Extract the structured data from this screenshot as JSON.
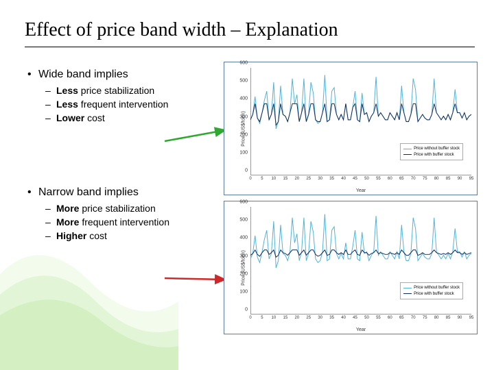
{
  "title": "Effect of price band width – Explanation",
  "blocks": [
    {
      "heading": "Wide band implies",
      "items": [
        {
          "bold": "Less",
          "rest": " price stabilization"
        },
        {
          "bold": "Less",
          "rest": " frequent intervention"
        },
        {
          "bold": "Lower",
          "rest": " cost"
        }
      ]
    },
    {
      "heading": "Narrow band implies",
      "items": [
        {
          "bold": "More",
          "rest": " price stabilization"
        },
        {
          "bold": "More",
          "rest": " frequent intervention"
        },
        {
          "bold": "Higher",
          "rest": " cost"
        }
      ]
    }
  ],
  "arrows": [
    {
      "color": "#2fa82f",
      "from": "wide-block",
      "to": "chart-0"
    },
    {
      "color": "#d02828",
      "from": "narrow-block",
      "to": "chart-1"
    }
  ],
  "charts": [
    {
      "type": "line",
      "ylabel": "Price (US$/tonn)",
      "xlabel": "Year",
      "ylim": [
        0,
        600
      ],
      "ytick_step": 100,
      "xlim": [
        0,
        95
      ],
      "xtick_step": 5,
      "background_color": "#ffffff",
      "axis_color": "#999999",
      "line_width": 1,
      "legend": [
        {
          "label": "Price without buffer stock",
          "color": "#4fb3d9"
        },
        {
          "label": "Price with buffer stock",
          "color": "#0e2a5c"
        }
      ],
      "series": [
        {
          "name": "without",
          "color": "#4fb3d9",
          "y": [
            310,
            340,
            440,
            320,
            290,
            350,
            420,
            470,
            310,
            340,
            520,
            260,
            300,
            500,
            340,
            330,
            300,
            350,
            540,
            400,
            450,
            300,
            350,
            540,
            300,
            340,
            520,
            460,
            310,
            290,
            300,
            350,
            560,
            300,
            310,
            470,
            490,
            340,
            310,
            340,
            310,
            400,
            310,
            310,
            380,
            470,
            310,
            300,
            460,
            340,
            350,
            300,
            330,
            350,
            550,
            330,
            350,
            330,
            310,
            310,
            350,
            330,
            310,
            350,
            310,
            500,
            350,
            300,
            300,
            340,
            540,
            480,
            300,
            320,
            340,
            320,
            310,
            310,
            340,
            540,
            350,
            330,
            310,
            330,
            310,
            340,
            310,
            350,
            480,
            350,
            350,
            320,
            350,
            310,
            330,
            340
          ]
        },
        {
          "name": "with",
          "color": "#0e2a5c",
          "y": [
            310,
            340,
            400,
            320,
            300,
            350,
            400,
            400,
            310,
            340,
            400,
            280,
            300,
            400,
            340,
            330,
            300,
            350,
            400,
            400,
            400,
            300,
            350,
            400,
            300,
            340,
            400,
            400,
            310,
            300,
            300,
            350,
            400,
            300,
            310,
            400,
            400,
            340,
            310,
            340,
            310,
            400,
            310,
            310,
            380,
            400,
            310,
            300,
            400,
            340,
            350,
            300,
            330,
            350,
            400,
            330,
            350,
            330,
            310,
            310,
            350,
            330,
            310,
            350,
            310,
            400,
            350,
            300,
            300,
            340,
            400,
            400,
            300,
            320,
            340,
            320,
            310,
            310,
            340,
            400,
            350,
            330,
            310,
            330,
            310,
            340,
            310,
            350,
            400,
            350,
            350,
            320,
            350,
            310,
            330,
            340
          ]
        }
      ]
    },
    {
      "type": "line",
      "ylabel": "Price (US$/tonn)",
      "xlabel": "Year",
      "ylim": [
        0,
        600
      ],
      "ytick_step": 100,
      "xlim": [
        0,
        95
      ],
      "xtick_step": 5,
      "background_color": "#ffffff",
      "axis_color": "#999999",
      "line_width": 1,
      "legend": [
        {
          "label": "Price without buffer stock",
          "color": "#4fb3d9"
        },
        {
          "label": "Price with buffer stock",
          "color": "#0e2a5c"
        }
      ],
      "series": [
        {
          "name": "without",
          "color": "#4fb3d9",
          "y": [
            310,
            340,
            440,
            320,
            290,
            350,
            420,
            470,
            310,
            340,
            520,
            260,
            300,
            500,
            340,
            330,
            300,
            350,
            540,
            400,
            450,
            300,
            350,
            540,
            300,
            340,
            520,
            460,
            310,
            290,
            300,
            350,
            560,
            300,
            310,
            470,
            490,
            340,
            310,
            340,
            310,
            400,
            310,
            310,
            380,
            470,
            310,
            300,
            460,
            340,
            350,
            300,
            330,
            350,
            550,
            330,
            350,
            330,
            310,
            310,
            350,
            330,
            310,
            350,
            310,
            500,
            350,
            300,
            300,
            340,
            540,
            480,
            300,
            320,
            340,
            320,
            310,
            310,
            340,
            540,
            350,
            330,
            310,
            330,
            310,
            340,
            310,
            350,
            480,
            350,
            350,
            320,
            350,
            310,
            330,
            340
          ]
        },
        {
          "name": "with",
          "color": "#0e2a5c",
          "y": [
            330,
            340,
            360,
            335,
            325,
            345,
            360,
            360,
            335,
            345,
            360,
            320,
            330,
            360,
            345,
            340,
            330,
            345,
            360,
            360,
            360,
            330,
            345,
            360,
            330,
            345,
            360,
            360,
            335,
            325,
            330,
            345,
            360,
            330,
            335,
            360,
            360,
            345,
            335,
            345,
            335,
            360,
            335,
            335,
            350,
            360,
            335,
            330,
            360,
            345,
            345,
            330,
            340,
            345,
            360,
            340,
            345,
            340,
            335,
            335,
            345,
            340,
            335,
            345,
            335,
            360,
            345,
            330,
            330,
            345,
            360,
            360,
            330,
            335,
            345,
            335,
            335,
            335,
            345,
            360,
            345,
            340,
            335,
            340,
            335,
            345,
            335,
            345,
            360,
            345,
            345,
            335,
            345,
            335,
            340,
            345
          ]
        }
      ]
    }
  ]
}
